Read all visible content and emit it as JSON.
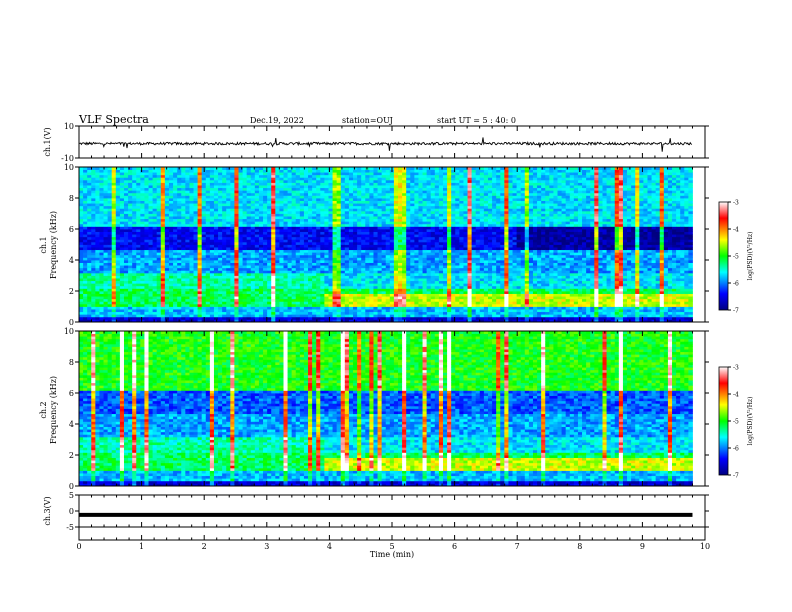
{
  "header": {
    "title": "VLF Spectra",
    "date": "Dec.19, 2022",
    "station": "station=OUJ",
    "start_ut": "start UT =  5 : 40: 0"
  },
  "colorbar": {
    "label": "log(PSD)(V²/Hz)",
    "ticks": [
      "-3",
      "-4",
      "-5",
      "-6",
      "-7"
    ],
    "range": [
      -7,
      -3
    ],
    "colormap": [
      "#000080",
      "#0000ff",
      "#00ffff",
      "#00ff00",
      "#ffff00",
      "#ff0000",
      "#ffffff"
    ]
  },
  "chart_data": [
    {
      "type": "line",
      "panel": "ch1-waveform",
      "ylabel": "ch.1(V)",
      "y_ticks": [
        "10",
        "-10"
      ],
      "ylim": [
        -10,
        10
      ],
      "x_range_min": [
        0,
        9.8
      ],
      "description_level": "noisy trace near -1 V with small spikes"
    },
    {
      "type": "heatmap",
      "panel": "ch1-spectrogram",
      "ylabel": "ch.1\nFrequency (kHz)",
      "y_ticks": [
        "0",
        "2",
        "4",
        "6",
        "8",
        "10"
      ],
      "ylim": [
        0,
        10
      ],
      "xlim": [
        0,
        10
      ],
      "data_end_min": 9.8,
      "colorbar_range": [
        -7,
        -3
      ]
    },
    {
      "type": "heatmap",
      "panel": "ch2-spectrogram",
      "ylabel": "ch.2\nFrequency (kHz)",
      "y_ticks": [
        "0",
        "2",
        "4",
        "6",
        "8",
        "10"
      ],
      "ylim": [
        0,
        10
      ],
      "xlim": [
        0,
        10
      ],
      "data_end_min": 9.8,
      "colorbar_range": [
        -7,
        -3
      ]
    },
    {
      "type": "line",
      "panel": "ch3-waveform",
      "ylabel": "ch.3(V)",
      "y_ticks": [
        "5",
        "0",
        "-5"
      ],
      "ylim": [
        -5,
        5
      ],
      "level": -1.2
    }
  ],
  "xaxis": {
    "label": "Time (min)",
    "ticks": [
      "0",
      "1",
      "2",
      "3",
      "4",
      "5",
      "6",
      "7",
      "8",
      "9",
      "10"
    ],
    "xlim": [
      0,
      10
    ]
  }
}
